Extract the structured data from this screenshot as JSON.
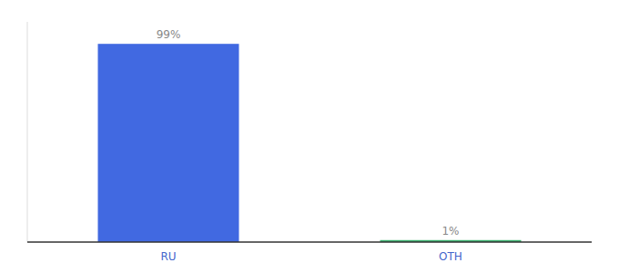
{
  "chart_data": {
    "type": "bar",
    "categories": [
      "RU",
      "OTH"
    ],
    "values": [
      99,
      1
    ],
    "value_labels": [
      "99%",
      "1%"
    ],
    "colors": [
      "#4169e1",
      "#3cb371"
    ],
    "ylim": [
      0,
      110
    ],
    "data_labels": true,
    "tick_labels": "x",
    "grid": false
  }
}
